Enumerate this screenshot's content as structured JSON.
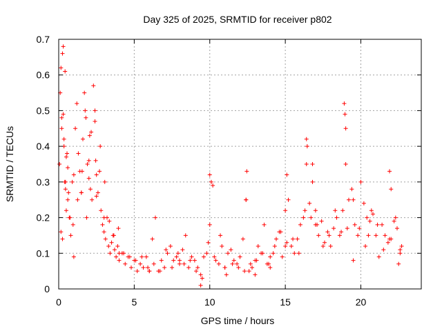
{
  "chart_data": {
    "type": "scatter",
    "title": "Day 325 of 2025, SRMTID for receiver p802",
    "xlabel": "GPS time / hours",
    "ylabel": "SRMTID / TECUs",
    "xlim": [
      0,
      24
    ],
    "ylim": [
      0,
      0.7
    ],
    "xticks": [
      0,
      5,
      10,
      15,
      20
    ],
    "yticks": [
      0,
      0.1,
      0.2,
      0.3,
      0.4,
      0.5,
      0.6,
      0.7
    ],
    "grid": true,
    "marker": "plus",
    "color": "#ff0000",
    "series": [
      {
        "name": "p802",
        "x": [
          0.05,
          0.1,
          0.15,
          0.2,
          0.25,
          0.3,
          0.35,
          0.4,
          0.45,
          0.5,
          0.55,
          0.6,
          0.65,
          0.7,
          0.8,
          0.9,
          1.0,
          1.1,
          1.2,
          1.3,
          1.4,
          1.5,
          1.6,
          1.7,
          1.8,
          1.9,
          2.0,
          2.1,
          2.2,
          2.3,
          2.4,
          2.5,
          2.6,
          2.7,
          2.8,
          2.9,
          3.0,
          3.1,
          3.2,
          3.3,
          3.4,
          3.5,
          3.6,
          3.7,
          3.8,
          3.9,
          4.0,
          4.2,
          4.4,
          4.6,
          4.8,
          5.0,
          5.2,
          5.4,
          5.6,
          5.8,
          6.0,
          6.2,
          6.4,
          6.6,
          6.8,
          7.0,
          7.2,
          7.4,
          7.6,
          7.8,
          8.0,
          8.2,
          8.4,
          8.6,
          8.8,
          9.0,
          9.2,
          9.4,
          9.6,
          9.8,
          10.0,
          10.2,
          10.4,
          10.6,
          10.8,
          11.0,
          11.2,
          11.4,
          11.6,
          11.8,
          12.0,
          12.2,
          12.4,
          12.6,
          12.8,
          13.0,
          13.2,
          13.4,
          13.6,
          13.8,
          14.0,
          14.2,
          14.4,
          14.6,
          14.8,
          15.0,
          15.2,
          15.4,
          15.6,
          15.8,
          16.0,
          16.2,
          16.4,
          16.6,
          16.8,
          17.0,
          17.2,
          17.4,
          17.6,
          17.8,
          18.0,
          18.2,
          18.4,
          18.6,
          18.8,
          19.0,
          19.2,
          19.4,
          19.6,
          19.8,
          20.0,
          20.2,
          20.4,
          20.6,
          20.8,
          21.0,
          21.2,
          21.4,
          21.6,
          21.8,
          22.0,
          22.2,
          22.4,
          22.6,
          22.7,
          0.15,
          0.25,
          0.35,
          0.45,
          0.6,
          0.75,
          0.95,
          1.25,
          1.55,
          1.85,
          2.15,
          2.45,
          2.75,
          3.05,
          3.35,
          3.65,
          3.95,
          4.3,
          4.7,
          5.1,
          5.5,
          5.9,
          6.3,
          6.7,
          7.1,
          7.5,
          7.9,
          8.3,
          8.7,
          9.1,
          9.5,
          9.9,
          10.3,
          10.7,
          11.1,
          11.5,
          11.9,
          12.3,
          12.7,
          13.1,
          13.5,
          13.9,
          14.3,
          14.7,
          15.1,
          15.5,
          15.9,
          16.3,
          16.7,
          17.1,
          17.5,
          17.9,
          18.3,
          18.7,
          19.1,
          19.5,
          19.9,
          20.3,
          20.7,
          21.1,
          21.5,
          21.9,
          22.3,
          22.6,
          0.3,
          0.42,
          1.75,
          2.05,
          2.4,
          10.0,
          10.1,
          12.4,
          12.45,
          15.1,
          16.4,
          16.45,
          16.8,
          18.9,
          18.95,
          19.0,
          21.9,
          0.2,
          0.5,
          1.0,
          1.5,
          2.0,
          2.5,
          3.0,
          4.0,
          6.0,
          8.0,
          9.4,
          11.0,
          13.0,
          14.0,
          15.0,
          17.0,
          19.5,
          20.5,
          22.0,
          22.5
        ],
        "y": [
          0.35,
          0.55,
          0.62,
          0.48,
          0.66,
          0.68,
          0.4,
          0.3,
          0.28,
          0.22,
          0.38,
          0.25,
          0.27,
          0.2,
          0.15,
          0.3,
          0.09,
          0.45,
          0.52,
          0.38,
          0.33,
          0.27,
          0.42,
          0.55,
          0.48,
          0.35,
          0.31,
          0.28,
          0.25,
          0.57,
          0.5,
          0.32,
          0.27,
          0.33,
          0.22,
          0.18,
          0.16,
          0.14,
          0.2,
          0.12,
          0.1,
          0.13,
          0.15,
          0.11,
          0.09,
          0.12,
          0.08,
          0.1,
          0.07,
          0.09,
          0.06,
          0.08,
          0.05,
          0.07,
          0.06,
          0.09,
          0.05,
          0.14,
          0.2,
          0.05,
          0.08,
          0.06,
          0.1,
          0.12,
          0.08,
          0.09,
          0.07,
          0.11,
          0.15,
          0.06,
          0.09,
          0.08,
          0.06,
          0.04,
          0.09,
          0.1,
          0.18,
          0.29,
          0.08,
          0.07,
          0.12,
          0.06,
          0.1,
          0.11,
          0.08,
          0.07,
          0.09,
          0.14,
          0.25,
          0.05,
          0.06,
          0.08,
          0.12,
          0.1,
          0.18,
          0.07,
          0.06,
          0.1,
          0.14,
          0.16,
          0.09,
          0.22,
          0.25,
          0.12,
          0.1,
          0.14,
          0.18,
          0.2,
          0.35,
          0.24,
          0.3,
          0.22,
          0.15,
          0.19,
          0.13,
          0.16,
          0.12,
          0.17,
          0.2,
          0.15,
          0.22,
          0.35,
          0.25,
          0.28,
          0.18,
          0.15,
          0.3,
          0.24,
          0.2,
          0.19,
          0.21,
          0.15,
          0.09,
          0.18,
          0.15,
          0.13,
          0.28,
          0.19,
          0.17,
          0.1,
          0.12,
          0.16,
          0.14,
          0.42,
          0.3,
          0.34,
          0.2,
          0.18,
          0.25,
          0.33,
          0.2,
          0.44,
          0.36,
          0.4,
          0.3,
          0.19,
          0.15,
          0.17,
          0.1,
          0.09,
          0.08,
          0.09,
          0.06,
          0.07,
          0.05,
          0.11,
          0.06,
          0.1,
          0.07,
          0.08,
          0.05,
          0.03,
          0.13,
          0.09,
          0.15,
          0.04,
          0.07,
          0.06,
          0.05,
          0.07,
          0.08,
          0.1,
          0.07,
          0.12,
          0.16,
          0.13,
          0.14,
          0.1,
          0.22,
          0.2,
          0.18,
          0.12,
          0.15,
          0.22,
          0.16,
          0.17,
          0.25,
          0.17,
          0.12,
          0.22,
          0.18,
          0.11,
          0.14,
          0.2,
          0.11,
          0.49,
          0.61,
          0.5,
          0.43,
          0.47,
          0.32,
          0.3,
          0.25,
          0.33,
          0.32,
          0.42,
          0.4,
          0.35,
          0.52,
          0.49,
          0.45,
          0.33,
          0.45,
          0.37,
          0.32,
          0.27,
          0.36,
          0.26,
          0.2,
          0.1,
          0.05,
          0.08,
          0.01,
          0.06,
          0.04,
          0.09,
          0.12,
          0.18,
          0.08,
          0.15,
          0.14,
          0.07
        ]
      }
    ]
  }
}
